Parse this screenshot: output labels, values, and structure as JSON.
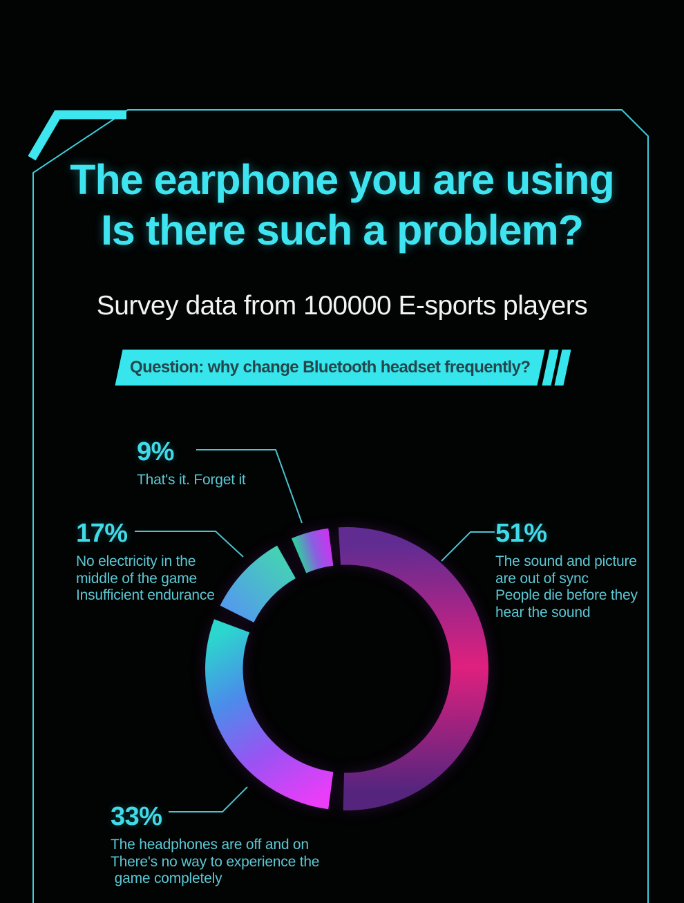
{
  "page": {
    "accent_color": "#3ee4ee",
    "background_color": "#020303"
  },
  "header": {
    "title_line1": "The earphone you are using",
    "title_line2": "Is there such a problem?",
    "subtitle": "Survey data from 100000 E-sports players",
    "question_banner": "Question: why change Bluetooth headset frequently?"
  },
  "chart_data": {
    "type": "pie",
    "donut": true,
    "title": "Question: why change Bluetooth headset frequently?",
    "unit": "percent",
    "legend_position": "callouts-around",
    "segments": [
      {
        "label": "The sound and picture are out of sync / People die before they hear the sound",
        "value": 51,
        "start_angle": -3.4,
        "end_angle": 181.5,
        "gradient": [
          "#612c92",
          "#e0207e",
          "#55257e"
        ]
      },
      {
        "label": "The headphones are off and on / There's no way to experience the game completely",
        "value": 33,
        "start_angle": 187.5,
        "end_angle": 290.5,
        "gradient": [
          "#e93df8",
          "#9a53f3",
          "#4b8cea",
          "#2bd7cd"
        ]
      },
      {
        "label": "No electricity in the middle of the game / Insufficient endurance",
        "value": 17,
        "start_angle": 296.5,
        "end_angle": 330.5,
        "gradient": [
          "#539ceb",
          "#45d1b5"
        ]
      },
      {
        "label": "That's it. Forget it",
        "value": 9,
        "start_angle": 337,
        "end_angle": 352.5,
        "gradient": [
          "#35c8a2",
          "#8a5fe0",
          "#c936f0"
        ]
      }
    ]
  },
  "callouts": {
    "seg9": {
      "pct": "9%",
      "lines": [
        "That's it. Forget it"
      ]
    },
    "seg17": {
      "pct": "17%",
      "lines": [
        "No electricity in the",
        "middle of the game",
        "Insufficient endurance"
      ]
    },
    "seg51": {
      "pct": "51%",
      "lines": [
        "The sound and picture",
        "are out of sync",
        "People die before they",
        "hear the sound"
      ]
    },
    "seg33": {
      "pct": "33%",
      "lines": [
        "The headphones are off and on",
        "There's no way to experience the",
        " game completely"
      ]
    }
  }
}
